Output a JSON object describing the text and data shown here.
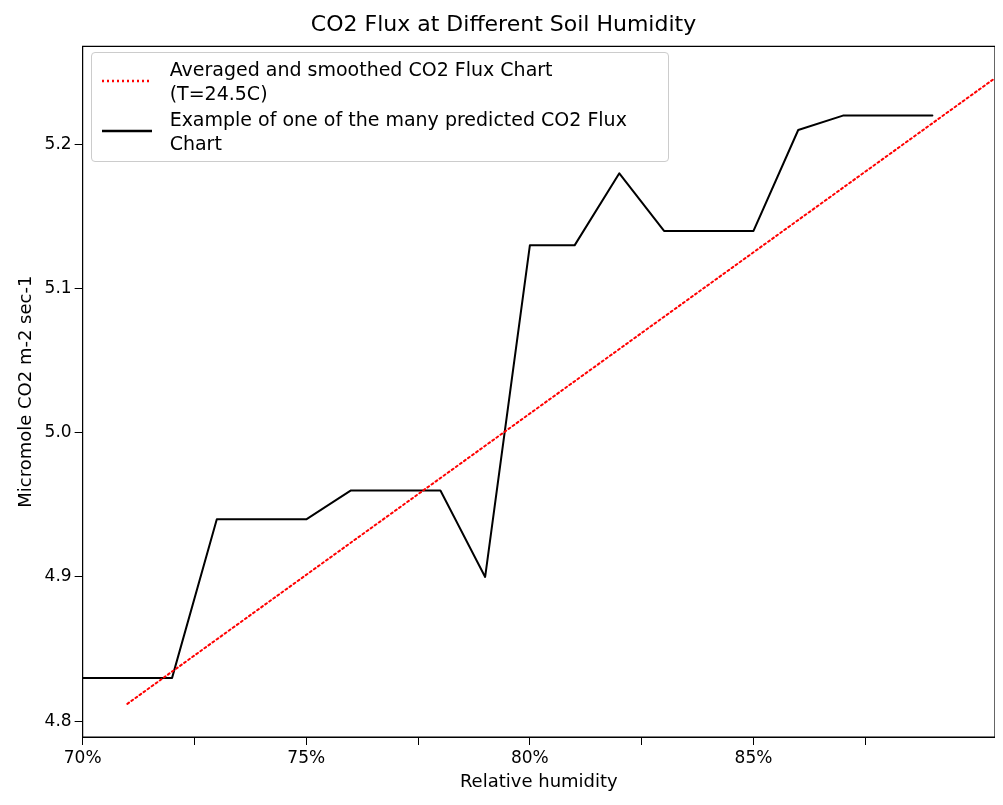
{
  "chart_data": {
    "type": "line",
    "title": "CO2 Flux at Different Soil Humidity",
    "xlabel": "Relative humidity",
    "ylabel": "Micromole CO2 m-2 sec-1",
    "xlim": [
      70,
      90.4
    ],
    "xticks": [
      {
        "value": 70,
        "label": "70%"
      },
      {
        "value": 72.5,
        "label": null
      },
      {
        "value": 75,
        "label": "75%"
      },
      {
        "value": 77.5,
        "label": null
      },
      {
        "value": 80,
        "label": "80%"
      },
      {
        "value": 82.5,
        "label": null
      },
      {
        "value": 85,
        "label": "85%"
      },
      {
        "value": 87.5,
        "label": null
      }
    ],
    "ylim": [
      4.789,
      5.268
    ],
    "yticks": [
      4.8,
      4.9,
      {
        "value": 5,
        "label": "5.0"
      },
      5.1,
      5.2
    ],
    "grid": false,
    "legend": "top left",
    "marker": "none",
    "series": [
      {
        "name": "Averaged and smoothed CO2 Flux Chart (T=24.5C)",
        "color": "#ff0000",
        "line_style": "dotted",
        "x": [
          71,
          90.4
        ],
        "values": [
          4.812,
          5.246
        ]
      },
      {
        "name": "Example of one of the many predicted CO2 Flux Chart",
        "color": "#000000",
        "line_style": "solid",
        "x": [
          70,
          71,
          72,
          73,
          74,
          75,
          76,
          77,
          78,
          79,
          80,
          81,
          82,
          83,
          84,
          85,
          86,
          87,
          88,
          89
        ],
        "values": [
          4.83,
          4.83,
          4.83,
          4.94,
          4.94,
          4.94,
          4.96,
          4.96,
          4.96,
          4.9,
          5.13,
          5.13,
          5.18,
          5.14,
          5.14,
          5.14,
          5.21,
          5.22,
          5.22,
          5.22
        ]
      }
    ]
  }
}
